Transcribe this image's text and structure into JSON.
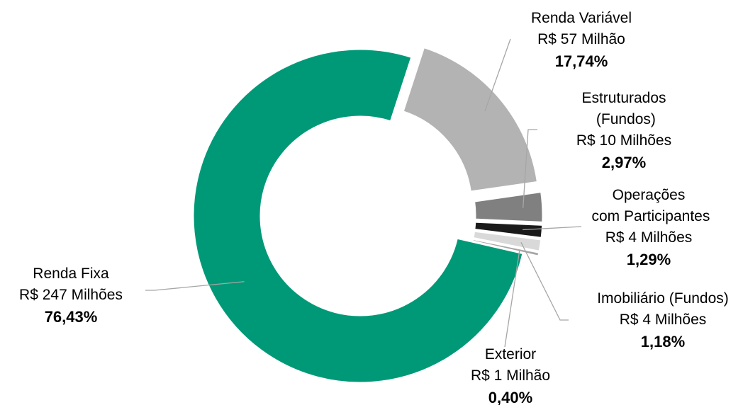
{
  "chart_data": {
    "type": "donut",
    "categories": [
      "Renda Variável",
      "Estruturados (Fundos)",
      "Operações com Participantes",
      "Imobiliário (Fundos)",
      "Exterior",
      "Renda Fixa"
    ],
    "amounts": [
      "R$ 57 Milhão",
      "R$ 10 Milhões",
      "R$ 4 Milhões",
      "R$ 4 Milhões",
      "R$ 1 Milhão",
      "R$ 247 Milhões"
    ],
    "values": [
      17.74,
      2.97,
      1.29,
      1.18,
      0.4,
      76.43
    ],
    "value_labels": [
      "17,74%",
      "2,97%",
      "1,29%",
      "1,18%",
      "0,40%",
      "76,43%"
    ],
    "colors": [
      "#b3b3b3",
      "#808080",
      "#1a1a1a",
      "#d9d9d9",
      "#a6a6a6",
      "#009977"
    ]
  }
}
